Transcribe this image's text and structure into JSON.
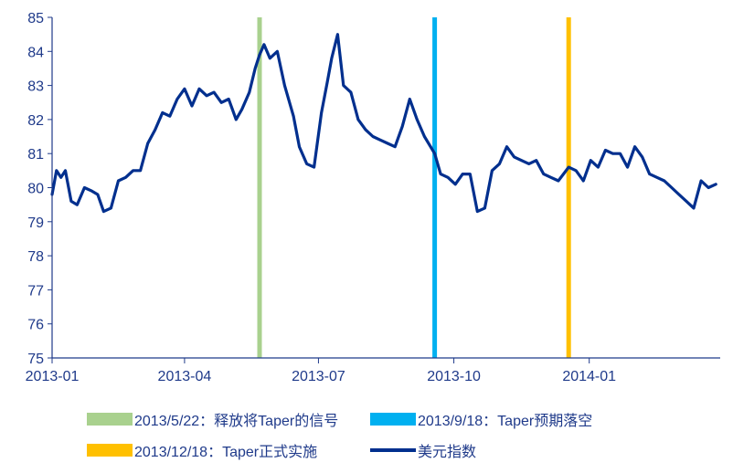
{
  "chart_data": {
    "type": "line",
    "title": "",
    "xlabel": "",
    "ylabel": "",
    "ylim": [
      75,
      85
    ],
    "y_ticks": [
      "75",
      "76",
      "77",
      "78",
      "79",
      "80",
      "81",
      "82",
      "83",
      "84",
      "85"
    ],
    "x_ticks": [
      "2013-01",
      "2013-04",
      "2013-07",
      "2013-10",
      "2014-01"
    ],
    "grid": false,
    "legend_position": "bottom",
    "series": [
      {
        "name": "美元指数",
        "color": "#002f8e",
        "x": [
          "2013-01-01",
          "2013-01-04",
          "2013-01-07",
          "2013-01-10",
          "2013-01-14",
          "2013-01-18",
          "2013-01-23",
          "2013-01-28",
          "2013-02-01",
          "2013-02-05",
          "2013-02-10",
          "2013-02-15",
          "2013-02-20",
          "2013-02-25",
          "2013-03-02",
          "2013-03-07",
          "2013-03-12",
          "2013-03-17",
          "2013-03-22",
          "2013-03-27",
          "2013-04-01",
          "2013-04-06",
          "2013-04-11",
          "2013-04-16",
          "2013-04-21",
          "2013-04-26",
          "2013-05-01",
          "2013-05-06",
          "2013-05-10",
          "2013-05-15",
          "2013-05-19",
          "2013-05-22",
          "2013-05-25",
          "2013-05-29",
          "2013-06-03",
          "2013-06-08",
          "2013-06-14",
          "2013-06-18",
          "2013-06-23",
          "2013-06-28",
          "2013-07-03",
          "2013-07-07",
          "2013-07-10",
          "2013-07-14",
          "2013-07-18",
          "2013-07-23",
          "2013-07-28",
          "2013-08-02",
          "2013-08-07",
          "2013-08-12",
          "2013-08-17",
          "2013-08-22",
          "2013-08-27",
          "2013-09-01",
          "2013-09-06",
          "2013-09-11",
          "2013-09-18",
          "2013-09-22",
          "2013-09-27",
          "2013-10-02",
          "2013-10-07",
          "2013-10-12",
          "2013-10-17",
          "2013-10-22",
          "2013-10-27",
          "2013-11-01",
          "2013-11-06",
          "2013-11-11",
          "2013-11-16",
          "2013-11-21",
          "2013-11-26",
          "2013-12-01",
          "2013-12-06",
          "2013-12-11",
          "2013-12-18",
          "2013-12-23",
          "2013-12-28",
          "2014-01-02",
          "2014-01-07",
          "2014-01-12",
          "2014-01-17",
          "2014-01-22",
          "2014-01-27",
          "2014-02-01",
          "2014-02-06",
          "2014-02-11",
          "2014-02-16",
          "2014-02-21",
          "2014-02-26",
          "2014-03-03",
          "2014-03-08",
          "2014-03-13",
          "2014-03-18",
          "2014-03-23",
          "2014-03-28"
        ],
        "values": [
          79.8,
          80.5,
          80.3,
          80.5,
          79.6,
          79.5,
          80.0,
          79.9,
          79.8,
          79.3,
          79.4,
          80.2,
          80.3,
          80.5,
          80.5,
          81.3,
          81.7,
          82.2,
          82.1,
          82.6,
          82.9,
          82.4,
          82.9,
          82.7,
          82.8,
          82.5,
          82.6,
          82.0,
          82.3,
          82.8,
          83.5,
          83.9,
          84.2,
          83.8,
          84.0,
          83.0,
          82.1,
          81.2,
          80.7,
          80.6,
          82.2,
          83.1,
          83.8,
          84.5,
          83.0,
          82.8,
          82.0,
          81.7,
          81.5,
          81.4,
          81.3,
          81.2,
          81.8,
          82.6,
          82.0,
          81.5,
          81.0,
          80.4,
          80.3,
          80.1,
          80.4,
          80.4,
          79.3,
          79.4,
          80.5,
          80.7,
          81.2,
          80.9,
          80.8,
          80.7,
          80.8,
          80.4,
          80.3,
          80.2,
          80.6,
          80.5,
          80.2,
          80.8,
          80.6,
          81.1,
          81.0,
          81.0,
          80.6,
          81.2,
          80.9,
          80.4,
          80.3,
          80.2,
          80.0,
          79.8,
          79.6,
          79.4,
          80.2,
          80.0,
          80.1
        ]
      }
    ],
    "events": [
      {
        "date": "2013-05-22",
        "label": "2013/5/22：释放将Taper的信号",
        "color": "#a9d18e"
      },
      {
        "date": "2013-09-18",
        "label": "2013/9/18：Taper预期落空",
        "color": "#00b0f0"
      },
      {
        "date": "2013-12-18",
        "label": "2013/12/18：Taper正式实施",
        "color": "#ffc000"
      }
    ]
  },
  "legend": {
    "event1": "2013/5/22：释放将Taper的信号",
    "event2": "2013/9/18：Taper预期落空",
    "event3": "2013/12/18：Taper正式实施",
    "series": "美元指数"
  },
  "colors": {
    "axis": "#1f3a8a",
    "line": "#002f8e",
    "event1": "#a9d18e",
    "event2": "#00b0f0",
    "event3": "#ffc000"
  }
}
